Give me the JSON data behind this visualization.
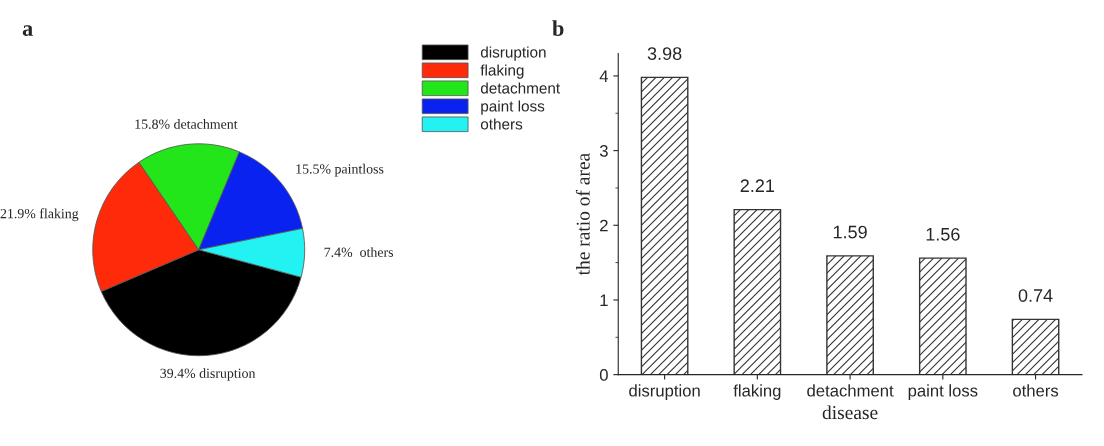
{
  "chart_data": [
    {
      "type": "pie",
      "title": "a",
      "categories": [
        "disruption",
        "flaking",
        "detachment",
        "paint loss",
        "others"
      ],
      "values": [
        39.4,
        21.9,
        15.8,
        15.5,
        7.4
      ],
      "colors": [
        "#000000",
        "#ff2a0a",
        "#22e61a",
        "#0a22f0",
        "#22f2f2"
      ],
      "value_labels": [
        "39.4% disruption",
        "21.9% flaking",
        "15.8% detachment",
        "15.5% paintloss",
        "7.4%  others"
      ],
      "legend": "top right"
    },
    {
      "type": "bar",
      "title": "b",
      "categories": [
        "disruption",
        "flaking",
        "detachment",
        "paint loss",
        "others"
      ],
      "values": [
        3.98,
        2.21,
        1.59,
        1.56,
        0.74
      ],
      "color": "#333333",
      "xlabel": "disease",
      "ylabel": "the ratio of area",
      "ylim": [
        0,
        4.3
      ],
      "yticks": [
        0,
        1,
        2,
        3,
        4
      ],
      "data_labels": true,
      "grid": false
    }
  ]
}
